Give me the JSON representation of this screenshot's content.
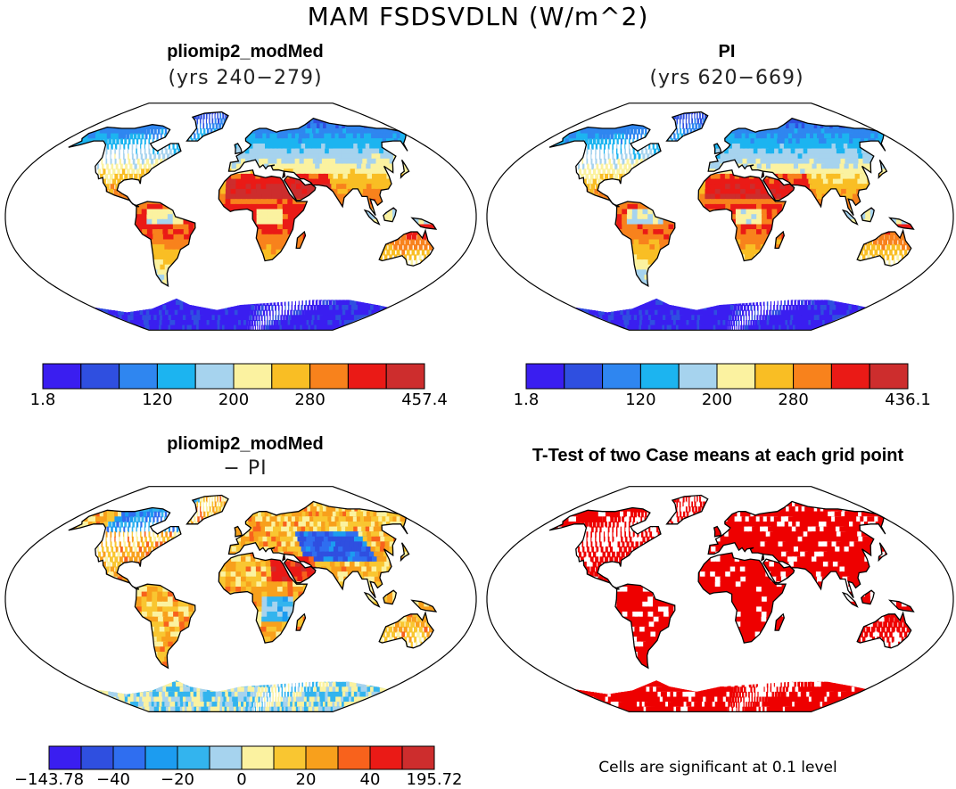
{
  "figure": {
    "title": "MAM FSDSVDLN (W/m^2)"
  },
  "panels": [
    {
      "id": "modmed",
      "title": "pliomip2_modMed",
      "subtitle": "(yrs 240−279)",
      "palette": "abs",
      "scale": 1.0
    },
    {
      "id": "pi",
      "title": "PI",
      "subtitle": "(yrs 620−669)",
      "palette": "abs",
      "scale": 0.96
    },
    {
      "id": "diff",
      "title": "pliomip2_modMed",
      "subtitle": "− PI",
      "palette": "diff"
    },
    {
      "id": "ttest",
      "title": "T-Test of two Case means at each grid point",
      "subtitle": "",
      "palette": "sig",
      "note": "Cells are significant at 0.1 level"
    }
  ],
  "colorbars": {
    "modmed": {
      "colors": [
        "#3a1ef0",
        "#2f4fe0",
        "#2f86f0",
        "#1cb4f0",
        "#a6d3ee",
        "#fbf2a0",
        "#f9be24",
        "#f8821c",
        "#ea1a16",
        "#cd2d2d"
      ],
      "labels": [
        [
          "1.8",
          0
        ],
        [
          "120",
          3
        ],
        [
          "200",
          5
        ],
        [
          "280",
          7
        ],
        [
          "457.4",
          10
        ]
      ]
    },
    "pi": {
      "colors": [
        "#3a1ef0",
        "#2f4fe0",
        "#2f86f0",
        "#1cb4f0",
        "#a6d3ee",
        "#fbf2a0",
        "#f9be24",
        "#f8821c",
        "#ea1a16",
        "#cd2d2d"
      ],
      "labels": [
        [
          "1.8",
          0
        ],
        [
          "120",
          3
        ],
        [
          "200",
          5
        ],
        [
          "280",
          7
        ],
        [
          "436.1",
          10
        ]
      ]
    },
    "diff": {
      "colors": [
        "#3a1ef0",
        "#2f4fe0",
        "#2f6ef0",
        "#1c9cf0",
        "#33b4ee",
        "#a6d3ee",
        "#fbf2a0",
        "#f9c631",
        "#f8a01c",
        "#f8621c",
        "#ea1a16",
        "#cd2d2d"
      ],
      "labels": [
        [
          "−143.78",
          0
        ],
        [
          "−40",
          2
        ],
        [
          "−20",
          4
        ],
        [
          "0",
          6
        ],
        [
          "20",
          8
        ],
        [
          "40",
          10
        ],
        [
          "195.72",
          12
        ]
      ]
    }
  }
}
